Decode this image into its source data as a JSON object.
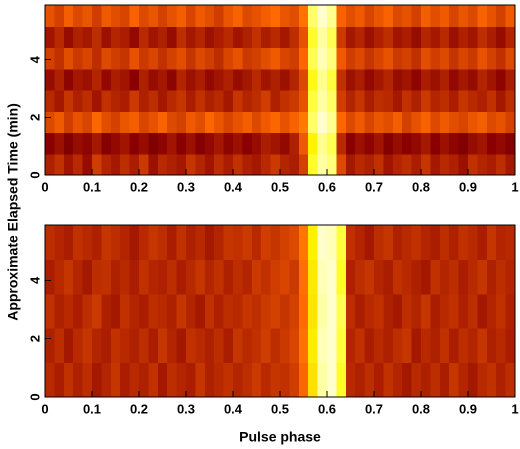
{
  "chart_data": [
    {
      "type": "heatmap",
      "colormap": "hot",
      "zlim": [
        0,
        100
      ],
      "y_label": "Approximate Elapsed Time (min)",
      "xlim": [
        0,
        1
      ],
      "xticks": [
        0,
        0.1,
        0.2,
        0.3,
        0.4,
        0.5,
        0.6,
        0.7,
        0.8,
        0.9,
        1
      ],
      "ylim": [
        0,
        5.9
      ],
      "yticks": [
        0,
        2,
        4
      ],
      "values": [
        [
          38,
          42,
          35,
          40,
          33,
          45,
          39,
          36,
          41,
          37,
          44,
          34,
          40,
          38,
          36,
          43,
          39,
          35,
          41,
          37,
          42,
          38,
          36,
          40,
          44,
          39,
          37,
          46,
          92,
          98,
          96,
          48,
          36,
          40,
          38,
          42,
          35,
          39,
          41,
          37,
          43,
          36,
          40,
          38,
          34,
          42,
          39,
          37,
          41,
          36
        ],
        [
          30,
          34,
          28,
          33,
          31,
          36,
          29,
          32,
          35,
          30,
          33,
          28,
          31,
          35,
          30,
          34,
          29,
          32,
          36,
          31,
          34,
          30,
          33,
          37,
          35,
          32,
          38,
          52,
          90,
          97,
          94,
          40,
          30,
          34,
          31,
          35,
          29,
          33,
          30,
          32,
          36,
          30,
          34,
          31,
          28,
          33,
          35,
          30,
          32,
          29
        ],
        [
          48,
          52,
          45,
          50,
          47,
          55,
          49,
          46,
          51,
          53,
          47,
          50,
          54,
          48,
          46,
          52,
          49,
          55,
          51,
          47,
          50,
          53,
          48,
          52,
          55,
          50,
          54,
          60,
          95,
          100,
          97,
          55,
          48,
          52,
          47,
          51,
          49,
          53,
          46,
          50,
          54,
          48,
          52,
          49,
          47,
          51,
          53,
          48,
          50,
          46
        ],
        [
          40,
          36,
          43,
          38,
          41,
          35,
          42,
          39,
          37,
          44,
          38,
          41,
          36,
          40,
          43,
          37,
          42,
          38,
          40,
          36,
          43,
          39,
          41,
          45,
          38,
          42,
          44,
          50,
          93,
          98,
          95,
          45,
          39,
          43,
          37,
          41,
          40,
          36,
          42,
          38,
          44,
          39,
          41,
          37,
          43,
          40,
          38,
          42,
          36,
          41
        ],
        [
          33,
          38,
          31,
          36,
          34,
          39,
          32,
          37,
          35,
          30,
          38,
          33,
          36,
          31,
          39,
          34,
          37,
          32,
          35,
          38,
          33,
          36,
          40,
          35,
          38,
          34,
          39,
          48,
          91,
          97,
          93,
          42,
          34,
          37,
          32,
          36,
          39,
          33,
          35,
          31,
          37,
          34,
          38,
          32,
          36,
          33,
          39,
          35,
          31,
          37
        ],
        [
          46,
          42,
          49,
          44,
          47,
          41,
          48,
          45,
          43,
          50,
          44,
          47,
          42,
          46,
          49,
          43,
          48,
          45,
          41,
          47,
          50,
          44,
          46,
          49,
          52,
          47,
          45,
          55,
          94,
          99,
          96,
          52,
          45,
          48,
          43,
          47,
          50,
          44,
          46,
          42,
          49,
          45,
          48,
          43,
          47,
          44,
          50,
          46,
          42,
          48
        ],
        [
          35,
          40,
          33,
          38,
          36,
          41,
          34,
          39,
          37,
          32,
          40,
          35,
          38,
          33,
          41,
          36,
          39,
          34,
          37,
          40,
          35,
          38,
          42,
          37,
          40,
          36,
          41,
          50,
          92,
          98,
          94,
          44,
          36,
          39,
          34,
          38,
          41,
          35,
          37,
          33,
          39,
          36,
          40,
          34,
          38,
          35,
          41,
          37,
          33,
          39
        ],
        [
          50,
          46,
          53,
          48,
          51,
          45,
          52,
          49,
          47,
          54,
          48,
          51,
          46,
          50,
          53,
          47,
          52,
          49,
          45,
          51,
          54,
          48,
          50,
          53,
          56,
          51,
          49,
          58,
          95,
          100,
          97,
          54,
          49,
          52,
          47,
          51,
          54,
          48,
          50,
          46,
          53,
          49,
          52,
          47,
          51,
          48,
          54,
          50,
          46,
          52
        ]
      ]
    },
    {
      "type": "heatmap",
      "colormap": "hot",
      "zlim": [
        0,
        100
      ],
      "x_label": "Pulse phase",
      "xlim": [
        0,
        1
      ],
      "xticks": [
        0,
        0.1,
        0.2,
        0.3,
        0.4,
        0.5,
        0.6,
        0.7,
        0.8,
        0.9,
        1
      ],
      "ylim": [
        0,
        5.9
      ],
      "yticks": [
        0,
        2,
        4
      ],
      "values": [
        [
          40,
          37,
          42,
          38,
          41,
          36,
          39,
          43,
          37,
          40,
          38,
          42,
          36,
          41,
          39,
          37,
          43,
          38,
          40,
          42,
          39,
          41,
          44,
          40,
          43,
          42,
          45,
          55,
          85,
          98,
          100,
          92,
          40,
          38,
          41,
          37,
          42,
          39,
          36,
          40,
          38,
          41,
          37,
          43,
          39,
          36,
          40,
          42,
          38,
          41
        ],
        [
          38,
          41,
          36,
          40,
          43,
          39,
          37,
          42,
          40,
          38,
          41,
          37,
          43,
          39,
          36,
          42,
          40,
          38,
          41,
          37,
          43,
          40,
          42,
          45,
          41,
          44,
          47,
          58,
          88,
          99,
          100,
          93,
          39,
          42,
          37,
          40,
          38,
          41,
          43,
          36,
          40,
          38,
          42,
          37,
          41,
          39,
          43,
          38,
          40,
          37
        ],
        [
          42,
          38,
          40,
          37,
          41,
          44,
          38,
          36,
          42,
          39,
          37,
          41,
          40,
          38,
          43,
          39,
          36,
          42,
          38,
          41,
          40,
          43,
          41,
          44,
          46,
          43,
          46,
          56,
          86,
          98,
          100,
          94,
          41,
          37,
          40,
          42,
          38,
          36,
          41,
          39,
          43,
          37,
          40,
          42,
          38,
          41,
          36,
          39,
          42,
          38
        ],
        [
          37,
          40,
          43,
          39,
          36,
          41,
          42,
          38,
          40,
          37,
          42,
          39,
          38,
          41,
          37,
          40,
          43,
          39,
          42,
          38,
          41,
          39,
          44,
          42,
          45,
          47,
          44,
          57,
          87,
          99,
          100,
          92,
          38,
          41,
          43,
          39,
          37,
          42,
          40,
          38,
          36,
          42,
          39,
          41,
          37,
          40,
          43,
          38,
          41,
          39
        ],
        [
          41,
          39,
          37,
          42,
          40,
          38,
          43,
          41,
          39,
          36,
          40,
          43,
          41,
          37,
          42,
          38,
          40,
          36,
          39,
          43,
          42,
          44,
          40,
          45,
          43,
          46,
          48,
          59,
          89,
          100,
          99,
          93,
          42,
          39,
          36,
          41,
          43,
          38,
          40,
          42,
          39,
          37,
          41,
          38,
          42,
          40,
          37,
          43,
          39,
          40
        ]
      ]
    }
  ]
}
